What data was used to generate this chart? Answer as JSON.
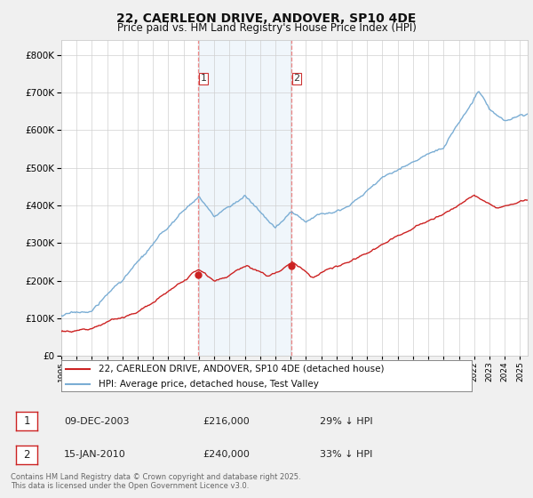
{
  "title": "22, CAERLEON DRIVE, ANDOVER, SP10 4DE",
  "subtitle": "Price paid vs. HM Land Registry's House Price Index (HPI)",
  "ylim": [
    0,
    840000
  ],
  "xlim_start": 1995.0,
  "xlim_end": 2025.5,
  "hpi_color": "#7aadd4",
  "price_color": "#cc2222",
  "vline_color": "#ee8888",
  "shade_color": "#daeaf5",
  "transaction1_date": 2003.94,
  "transaction1_price": 216000,
  "transaction2_date": 2010.04,
  "transaction2_price": 240000,
  "legend_entry1": "22, CAERLEON DRIVE, ANDOVER, SP10 4DE (detached house)",
  "legend_entry2": "HPI: Average price, detached house, Test Valley",
  "note1_num": "1",
  "note1_date": "09-DEC-2003",
  "note1_price": "£216,000",
  "note1_hpi": "29% ↓ HPI",
  "note2_num": "2",
  "note2_date": "15-JAN-2010",
  "note2_price": "£240,000",
  "note2_hpi": "33% ↓ HPI",
  "footer": "Contains HM Land Registry data © Crown copyright and database right 2025.\nThis data is licensed under the Open Government Licence v3.0.",
  "background_color": "#f0f0f0",
  "plot_bg_color": "#ffffff"
}
